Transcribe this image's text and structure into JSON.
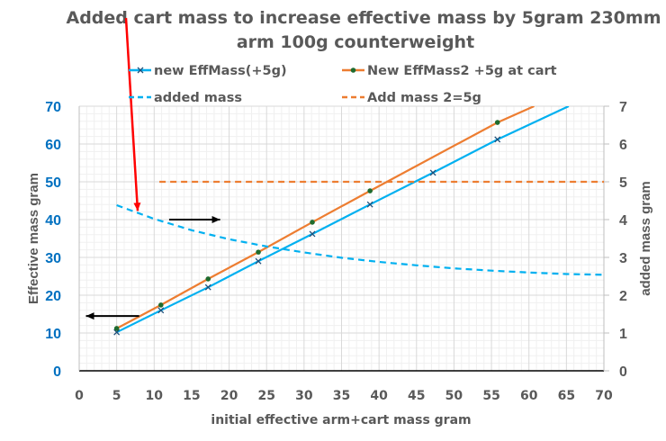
{
  "chart_data": {
    "type": "scatter",
    "title": "Added cart mass to increase effective mass by 5gram 230mm arm 100g counterweight",
    "title_lines": [
      "Added cart mass to increase effective mass by 5gram 230mm",
      "arm 100g counterweight"
    ],
    "xlabel": "initial effective arm+cart mass gram",
    "ylabel": "Effective mass gram",
    "y2label": "added mass gram",
    "xlim": [
      0,
      70
    ],
    "ylim": [
      0,
      70
    ],
    "y2lim": [
      0,
      7
    ],
    "x_ticks": [
      0,
      5,
      10,
      15,
      20,
      25,
      30,
      35,
      40,
      45,
      50,
      55,
      60,
      65,
      70
    ],
    "y_ticks": [
      0,
      10,
      20,
      30,
      40,
      50,
      60,
      70
    ],
    "y2_ticks": [
      0,
      1,
      2,
      3,
      4,
      5,
      6,
      7
    ],
    "grid": true,
    "legend_position": "top",
    "series": [
      {
        "name": "new EffMass(+5g)",
        "axis": "left",
        "style": "solid-line-x-markers",
        "color": "#00B0F0",
        "marker_color": "#1F4E79",
        "points": [
          [
            5.0,
            10.2
          ],
          [
            10.9,
            16.0
          ],
          [
            17.2,
            22.1
          ],
          [
            23.9,
            29.0
          ],
          [
            31.1,
            36.2
          ],
          [
            38.8,
            44.0
          ],
          [
            47.2,
            52.4
          ],
          [
            55.8,
            61.2
          ]
        ],
        "line_extends_to": [
          65.3,
          70
        ]
      },
      {
        "name": "New EffMass2 +5g at cart",
        "axis": "left",
        "style": "solid-line-dot-markers",
        "color": "#ED7D31",
        "marker_color": "#1E6B2E",
        "points": [
          [
            5.0,
            11.2
          ],
          [
            10.9,
            17.4
          ],
          [
            17.2,
            24.3
          ],
          [
            23.9,
            31.4
          ],
          [
            31.1,
            39.3
          ],
          [
            38.8,
            47.6
          ],
          [
            55.8,
            65.7
          ]
        ],
        "line_extends_to": [
          60.7,
          70
        ]
      },
      {
        "name": "added mass",
        "axis": "right",
        "style": "dashed",
        "color": "#00B0F0",
        "points": [
          [
            5,
            4.38
          ],
          [
            10,
            4.02
          ],
          [
            15,
            3.72
          ],
          [
            20,
            3.48
          ],
          [
            25,
            3.29
          ],
          [
            30,
            3.13
          ],
          [
            35,
            2.99
          ],
          [
            40,
            2.88
          ],
          [
            45,
            2.79
          ],
          [
            50,
            2.71
          ],
          [
            55,
            2.65
          ],
          [
            60,
            2.6
          ],
          [
            65,
            2.56
          ],
          [
            70,
            2.54
          ]
        ]
      },
      {
        "name": "Add mass 2=5g",
        "axis": "right",
        "style": "dashed",
        "color": "#ED7D31",
        "points": [
          [
            10.7,
            5.0
          ],
          [
            70,
            5.0
          ]
        ]
      }
    ],
    "annotations": [
      {
        "type": "arrow",
        "color": "#FF0000",
        "description": "red arrow from title down to added mass curve",
        "from_axes": [
          6.2,
          94
        ],
        "to_axes": [
          7.8,
          42.3
        ],
        "note": "origin lies above plot in title area"
      },
      {
        "type": "arrow",
        "color": "#000000",
        "description": "black arrow pointing right (added mass curve uses right axis)",
        "from": [
          12,
          40
        ],
        "to": [
          18.8,
          40
        ]
      },
      {
        "type": "arrow",
        "color": "#000000",
        "description": "black arrow pointing left (solid lines use left axis)",
        "from": [
          8,
          14.5
        ],
        "to": [
          0.9,
          14.5
        ]
      }
    ]
  },
  "colors": {
    "left_axis_ticks": "#0070C0",
    "text_gray": "#595959",
    "grid_major": "#D9D9D9",
    "grid_minor": "#F0F0F0"
  }
}
